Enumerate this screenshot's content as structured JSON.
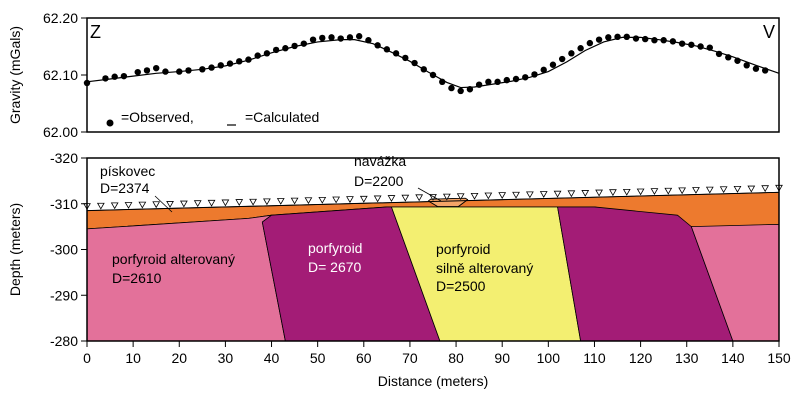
{
  "chart_data": [
    {
      "type": "scatter",
      "title": "",
      "ylabel": "Gravity (mGals)",
      "xlim": [
        0,
        150
      ],
      "ylim": [
        62.0,
        62.2
      ],
      "y_ticks": [
        "62.00",
        "62.10",
        "62.20"
      ],
      "left_label": "Z",
      "right_label": "V",
      "legend": {
        "observed_label": "=Observed,",
        "calculated_label": "=Calculated",
        "placement": "bottom-left"
      },
      "series": [
        {
          "key": "observed",
          "style": "points",
          "x": [
            0,
            4,
            6,
            8,
            11,
            13,
            15,
            17,
            20,
            22,
            25,
            27,
            29,
            31,
            33,
            35,
            37,
            39,
            41,
            43,
            45,
            47,
            49,
            51,
            53,
            55,
            57,
            59,
            61,
            63,
            65,
            67,
            69,
            71,
            73,
            75,
            77,
            79,
            81,
            83,
            85,
            87,
            89,
            91,
            93,
            95,
            97,
            99,
            101,
            103,
            105,
            107,
            109,
            111,
            113,
            115,
            117,
            119,
            121,
            123,
            125,
            127,
            129,
            131,
            133,
            135,
            137,
            139,
            141,
            143,
            145,
            147
          ],
          "y": [
            62.086,
            62.094,
            62.097,
            62.098,
            62.105,
            62.108,
            62.112,
            62.106,
            62.106,
            62.108,
            62.11,
            62.113,
            62.117,
            62.12,
            62.124,
            62.127,
            62.134,
            62.138,
            62.144,
            62.147,
            62.151,
            62.155,
            62.162,
            62.165,
            62.166,
            62.164,
            62.166,
            62.168,
            62.161,
            62.152,
            62.145,
            62.138,
            62.13,
            62.121,
            62.11,
            62.1,
            62.088,
            62.077,
            62.072,
            62.075,
            62.083,
            62.088,
            62.088,
            62.091,
            62.093,
            62.096,
            62.101,
            62.109,
            62.118,
            62.128,
            62.138,
            62.147,
            62.156,
            62.162,
            62.166,
            62.167,
            62.167,
            62.164,
            62.163,
            62.161,
            62.161,
            62.159,
            62.155,
            62.153,
            62.15,
            62.148,
            62.137,
            62.131,
            62.125,
            62.117,
            62.111,
            62.108
          ]
        },
        {
          "key": "calculated",
          "style": "line",
          "x": [
            0,
            5,
            10,
            15,
            20,
            25,
            30,
            35,
            40,
            45,
            50,
            55,
            58,
            62,
            66,
            70,
            74,
            78,
            81,
            84,
            88,
            92,
            96,
            100,
            104,
            108,
            112,
            116,
            120,
            124,
            128,
            132,
            136,
            140,
            145,
            150
          ],
          "y": [
            62.088,
            62.093,
            62.098,
            62.103,
            62.106,
            62.11,
            62.116,
            62.126,
            62.139,
            62.15,
            62.158,
            62.162,
            62.162,
            62.155,
            62.14,
            62.124,
            62.105,
            62.087,
            62.078,
            62.079,
            62.084,
            62.089,
            62.096,
            62.106,
            62.123,
            62.143,
            62.158,
            62.166,
            62.166,
            62.162,
            62.157,
            62.151,
            62.142,
            62.132,
            62.117,
            62.103
          ]
        }
      ]
    },
    {
      "type": "area",
      "title": "",
      "xlabel": "Distance (meters)",
      "ylabel": "Depth (meters)",
      "xlim": [
        0,
        150
      ],
      "ylim": [
        -280,
        -320
      ],
      "x_ticks": [
        "0",
        "10",
        "20",
        "30",
        "40",
        "50",
        "60",
        "70",
        "80",
        "90",
        "100",
        "110",
        "120",
        "130",
        "140",
        "150"
      ],
      "y_ticks": [
        "-320",
        "-310",
        "-300",
        "-290",
        "-280"
      ],
      "stations_x": [
        0,
        3,
        6,
        9,
        12,
        15,
        18,
        21,
        24,
        27,
        30,
        33,
        36,
        39,
        42,
        45,
        48,
        51,
        54,
        57,
        60,
        63,
        66,
        69,
        72,
        75,
        78,
        81,
        84,
        87,
        90,
        93,
        96,
        99,
        102,
        105,
        108,
        111,
        114,
        117,
        120,
        123,
        126,
        129,
        132,
        135,
        138,
        141,
        144,
        147,
        150
      ],
      "surface": {
        "x": [
          0,
          150
        ],
        "y": [
          -308.5,
          -312.5
        ]
      },
      "bodies": [
        {
          "key": "piskovec",
          "label": "pískovec",
          "density": "D=2374",
          "color": "#ED7A2E",
          "polygon": [
            [
              0,
              -308.5
            ],
            [
              150,
              -312.5
            ],
            [
              150,
              -305.5
            ],
            [
              132,
              -304.8
            ],
            [
              110,
              -309.3
            ],
            [
              65,
              -309.3
            ],
            [
              40,
              -307.5
            ],
            [
              35,
              -306.8
            ],
            [
              0,
              -304.5
            ]
          ]
        },
        {
          "key": "navazka",
          "label": "navážka",
          "density": "D=2200",
          "color": "#F4A467",
          "polygon": [
            [
              74,
              -310.6
            ],
            [
              76,
              -309.4
            ],
            [
              80.5,
              -309.4
            ],
            [
              82.5,
              -310.9
            ],
            [
              82,
              -311.2
            ],
            [
              74.5,
              -311.0
            ]
          ]
        },
        {
          "key": "porfyroid_alt_left",
          "label": "porfyroid alterovaný",
          "density": "D=2610",
          "color": "#E3719A",
          "polygon": [
            [
              0,
              -304.5
            ],
            [
              35,
              -306.8
            ],
            [
              40,
              -307.5
            ],
            [
              38,
              -306.0
            ],
            [
              43,
              -280
            ],
            [
              0,
              -280
            ]
          ]
        },
        {
          "key": "porfyroid_left",
          "label": "porfyroid",
          "density": "D= 2670",
          "color": "#A31C76",
          "polygon": [
            [
              40,
              -307.5
            ],
            [
              65,
              -309.3
            ],
            [
              66,
              -309.3
            ],
            [
              76.5,
              -280
            ],
            [
              43,
              -280
            ],
            [
              38,
              -306.0
            ]
          ]
        },
        {
          "key": "porfyroid_silne",
          "label": "porfyroid",
          "label2": "silně alterovaný",
          "density": "D=2500",
          "color": "#F3EF71",
          "polygon": [
            [
              66,
              -309.3
            ],
            [
              102,
              -309.3
            ],
            [
              107,
              -280
            ],
            [
              76.5,
              -280
            ]
          ]
        },
        {
          "key": "porfyroid_right",
          "label": "",
          "density": "",
          "color": "#A31C76",
          "polygon": [
            [
              102,
              -309.3
            ],
            [
              110,
              -309.3
            ],
            [
              128,
              -307.5
            ],
            [
              131,
              -305.0
            ],
            [
              140,
              -280
            ],
            [
              107,
              -280
            ]
          ]
        },
        {
          "key": "porfyroid_alt_right",
          "label": "",
          "density": "",
          "color": "#E3719A",
          "polygon": [
            [
              131,
              -305.0
            ],
            [
              150,
              -305.5
            ],
            [
              150,
              -280
            ],
            [
              140,
              -280
            ]
          ]
        }
      ]
    }
  ]
}
